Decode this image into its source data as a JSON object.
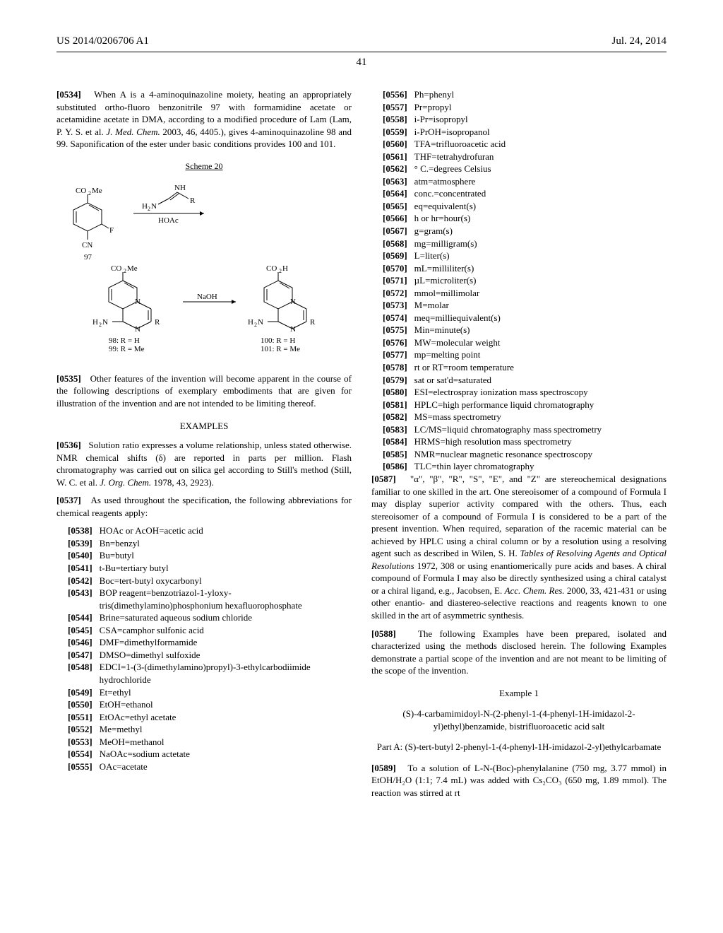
{
  "header": {
    "pub_number": "US 2014/0206706 A1",
    "date": "Jul. 24, 2014",
    "page": "41"
  },
  "left": {
    "p0534_ref": "[0534]",
    "p0534": "When A is a 4-aminoquinazoline moiety, heating an appropriately substituted ortho-fluoro benzonitrile 97 with formamidine acetate or acetamidine acetate in DMA, according to a modified procedure of Lam (Lam, P. Y. S. et al. J. Med. Chem. 2003, 46, 4405.), gives 4-aminoquinazoline 98 and 99. Saponification of the ester under basic conditions provides 100 and 101.",
    "scheme_title": "Scheme 20",
    "scheme": {
      "compound97": "97",
      "reagent1_top": "NH",
      "reagent1_mid": "H₂N      R",
      "reagent1_bot": "HOAc",
      "struct97_top": "CO₂Me",
      "struct97_f": "F",
      "struct97_cn": "CN",
      "prod_left_top": "CO₂Me",
      "prod_right_top": "CO₂H",
      "arrow2": "NaOH",
      "nh2": "H₂N",
      "left_labels": "98: R = H\n99: R = Me",
      "right_labels": "100: R = H\n101: R = Me"
    },
    "p0535_ref": "[0535]",
    "p0535": "Other features of the invention will become apparent in the course of the following descriptions of exemplary embodiments that are given for illustration of the invention and are not intended to be limiting thereof.",
    "examples_heading": "EXAMPLES",
    "p0536_ref": "[0536]",
    "p0536": "Solution ratio expresses a volume relationship, unless stated otherwise. NMR chemical shifts (δ) are reported in parts per million. Flash chromatography was carried out on silica gel according to Still's method (Still, W. C. et al. J. Org. Chem. 1978, 43, 2923).",
    "p0537_ref": "[0537]",
    "p0537": "As used throughout the specification, the following abbreviations for chemical reagents apply:",
    "abbrevs": [
      {
        "r": "[0538]",
        "t": "HOAc or AcOH=acetic acid"
      },
      {
        "r": "[0539]",
        "t": "Bn=benzyl"
      },
      {
        "r": "[0540]",
        "t": "Bu=butyl"
      },
      {
        "r": "[0541]",
        "t": "t-Bu=tertiary butyl"
      },
      {
        "r": "[0542]",
        "t": "Boc=tert-butyl oxycarbonyl"
      },
      {
        "r": "[0543]",
        "t": "BOP reagent=benzotriazol-1-yloxy-tris(dimethylamino)phosphonium hexafluorophosphate"
      },
      {
        "r": "[0544]",
        "t": "Brine=saturated aqueous sodium chloride"
      },
      {
        "r": "[0545]",
        "t": "CSA=camphor sulfonic acid"
      },
      {
        "r": "[0546]",
        "t": "DMF=dimethylformamide"
      },
      {
        "r": "[0547]",
        "t": "DMSO=dimethyl sulfoxide"
      },
      {
        "r": "[0548]",
        "t": "EDCI=1-(3-(dimethylamino)propyl)-3-ethylcarbodiimide hydrochloride"
      },
      {
        "r": "[0549]",
        "t": "Et=ethyl"
      },
      {
        "r": "[0550]",
        "t": "EtOH=ethanol"
      },
      {
        "r": "[0551]",
        "t": "EtOAc=ethyl acetate"
      },
      {
        "r": "[0552]",
        "t": "Me=methyl"
      },
      {
        "r": "[0553]",
        "t": "MeOH=methanol"
      },
      {
        "r": "[0554]",
        "t": "NaOAc=sodium actetate"
      },
      {
        "r": "[0555]",
        "t": "OAc=acetate"
      }
    ]
  },
  "right": {
    "abbrevs": [
      {
        "r": "[0556]",
        "t": "Ph=phenyl"
      },
      {
        "r": "[0557]",
        "t": "Pr=propyl"
      },
      {
        "r": "[0558]",
        "t": "i-Pr=isopropyl"
      },
      {
        "r": "[0559]",
        "t": "i-PrOH=isopropanol"
      },
      {
        "r": "[0560]",
        "t": "TFA=trifluoroacetic acid"
      },
      {
        "r": "[0561]",
        "t": "THF=tetrahydrofuran"
      },
      {
        "r": "[0562]",
        "t": "° C.=degrees Celsius"
      },
      {
        "r": "[0563]",
        "t": "atm=atmosphere"
      },
      {
        "r": "[0564]",
        "t": "conc.=concentrated"
      },
      {
        "r": "[0565]",
        "t": "eq=equivalent(s)"
      },
      {
        "r": "[0566]",
        "t": "h or hr=hour(s)"
      },
      {
        "r": "[0567]",
        "t": "g=gram(s)"
      },
      {
        "r": "[0568]",
        "t": "mg=milligram(s)"
      },
      {
        "r": "[0569]",
        "t": "L=liter(s)"
      },
      {
        "r": "[0570]",
        "t": "mL=milliliter(s)"
      },
      {
        "r": "[0571]",
        "t": "µL=microliter(s)"
      },
      {
        "r": "[0572]",
        "t": "mmol=millimolar"
      },
      {
        "r": "[0573]",
        "t": "M=molar"
      },
      {
        "r": "[0574]",
        "t": "meq=milliequivalent(s)"
      },
      {
        "r": "[0575]",
        "t": "Min=minute(s)"
      },
      {
        "r": "[0576]",
        "t": "MW=molecular weight"
      },
      {
        "r": "[0577]",
        "t": "mp=melting point"
      },
      {
        "r": "[0578]",
        "t": "rt or RT=room temperature"
      },
      {
        "r": "[0579]",
        "t": "sat or sat'd=saturated"
      },
      {
        "r": "[0580]",
        "t": "ESI=electrospray ionization mass spectroscopy"
      },
      {
        "r": "[0581]",
        "t": "HPLC=high performance liquid chromatography"
      },
      {
        "r": "[0582]",
        "t": "MS=mass spectrometry"
      },
      {
        "r": "[0583]",
        "t": "LC/MS=liquid chromatography mass spectrometry"
      },
      {
        "r": "[0584]",
        "t": "HRMS=high resolution mass spectrometry"
      },
      {
        "r": "[0585]",
        "t": "NMR=nuclear magnetic resonance spectroscopy"
      },
      {
        "r": "[0586]",
        "t": "TLC=thin layer chromatography"
      }
    ],
    "p0587_ref": "[0587]",
    "p0587": "\"α\", \"β\", \"R\", \"S\", \"E\", and \"Z\" are stereochemical designations familiar to one skilled in the art. One stereoisomer of a compound of Formula I may display superior activity compared with the others. Thus, each stereoisomer of a compound of Formula I is considered to be a part of the present invention. When required, separation of the racemic material can be achieved by HPLC using a chiral column or by a resolution using a resolving agent such as described in Wilen, S. H. Tables of Resolving Agents and Optical Resolutions 1972, 308 or using enantiomerically pure acids and bases. A chiral compound of Formula I may also be directly synthesized using a chiral catalyst or a chiral ligand, e.g., Jacobsen, E. Acc. Chem. Res. 2000, 33, 421-431 or using other enantio- and diastereo-selective reactions and reagents known to one skilled in the art of asymmetric synthesis.",
    "p0588_ref": "[0588]",
    "p0588": "The following Examples have been prepared, isolated and characterized using the methods disclosed herein. The following Examples demonstrate a partial scope of the invention and are not meant to be limiting of the scope of the invention.",
    "example1_heading": "Example 1",
    "example1_name": "(S)-4-carbamimidoyl-N-(2-phenyl-1-(4-phenyl-1H-imidazol-2-yl)ethyl)benzamide, bistrifluoroacetic acid salt",
    "partA_title": "Part A: (S)-tert-butyl 2-phenyl-1-(4-phenyl-1H-imidazol-2-yl)ethylcarbamate",
    "p0589_ref": "[0589]",
    "p0589": "To a solution of L-N-(Boc)-phenylalanine (750 mg, 3.77 mmol) in EtOH/H₂O (1:1; 7.4 mL) was added with Cs₂CO₃ (650 mg, 1.89 mmol). The reaction was stirred at rt"
  }
}
